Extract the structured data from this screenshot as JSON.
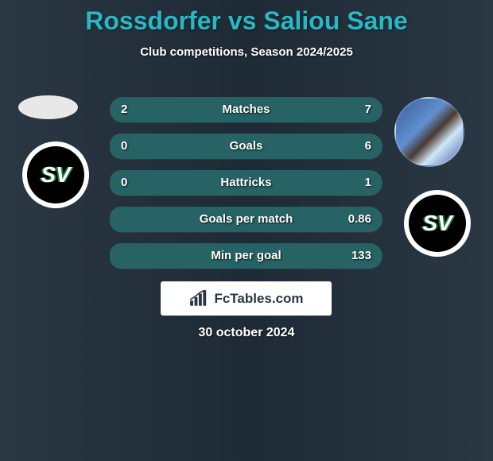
{
  "title": "Rossdorfer vs Saliou Sane",
  "subtitle": "Club competitions, Season 2024/2025",
  "date": "30 october 2024",
  "brand": "FcTables.com",
  "colors": {
    "title": "#28b8c4",
    "p1_fill": "#2a7070",
    "p2_fill": "#2a7070",
    "bg_row": "rgba(0,0,0,.35)"
  },
  "rows": [
    {
      "label": "Matches",
      "left": "2",
      "right": "7",
      "lw": 22,
      "rw": 78
    },
    {
      "label": "Goals",
      "left": "0",
      "right": "6",
      "lw": 4,
      "rw": 96
    },
    {
      "label": "Hattricks",
      "left": "0",
      "right": "1",
      "lw": 4,
      "rw": 96
    },
    {
      "label": "Goals per match",
      "left": "",
      "right": "0.86",
      "lw": 4,
      "rw": 96
    },
    {
      "label": "Min per goal",
      "left": "",
      "right": "133",
      "lw": 4,
      "rw": 96
    }
  ]
}
